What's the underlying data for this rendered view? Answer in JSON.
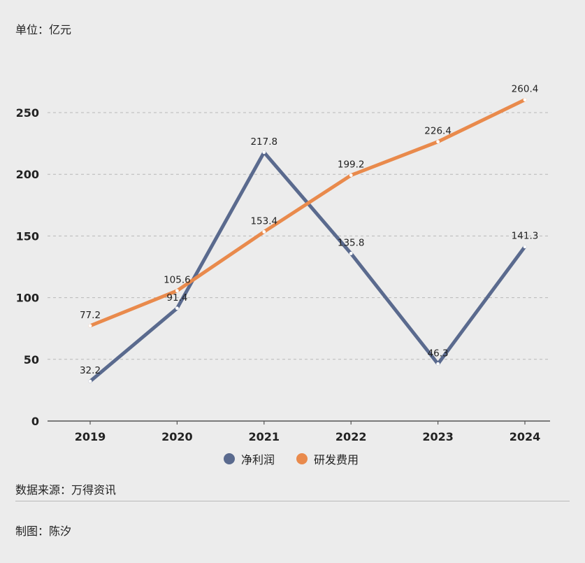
{
  "unit_label": "单位：亿元",
  "source": "数据来源：万得资讯",
  "credit": "制图：陈汐",
  "colors": {
    "background": "#ececec",
    "grid": "#b8b8b8",
    "axis": "#555555",
    "text": "#222222"
  },
  "chart_data": {
    "type": "line",
    "categories": [
      "2019",
      "2020",
      "2021",
      "2022",
      "2023",
      "2024"
    ],
    "series": [
      {
        "name": "净利润",
        "values": [
          32.2,
          91.4,
          217.8,
          135.8,
          46.3,
          141.3
        ],
        "color": "#5a6a8e"
      },
      {
        "name": "研发费用",
        "values": [
          77.2,
          105.6,
          153.4,
          199.2,
          226.4,
          260.4
        ],
        "color": "#e98a4c"
      }
    ],
    "yticks": [
      0,
      50,
      100,
      150,
      200,
      250
    ],
    "ylim": [
      0,
      250
    ],
    "title": "",
    "xlabel": "",
    "ylabel": "",
    "grid": true,
    "legend": "bottom-center",
    "data_labels": true
  }
}
